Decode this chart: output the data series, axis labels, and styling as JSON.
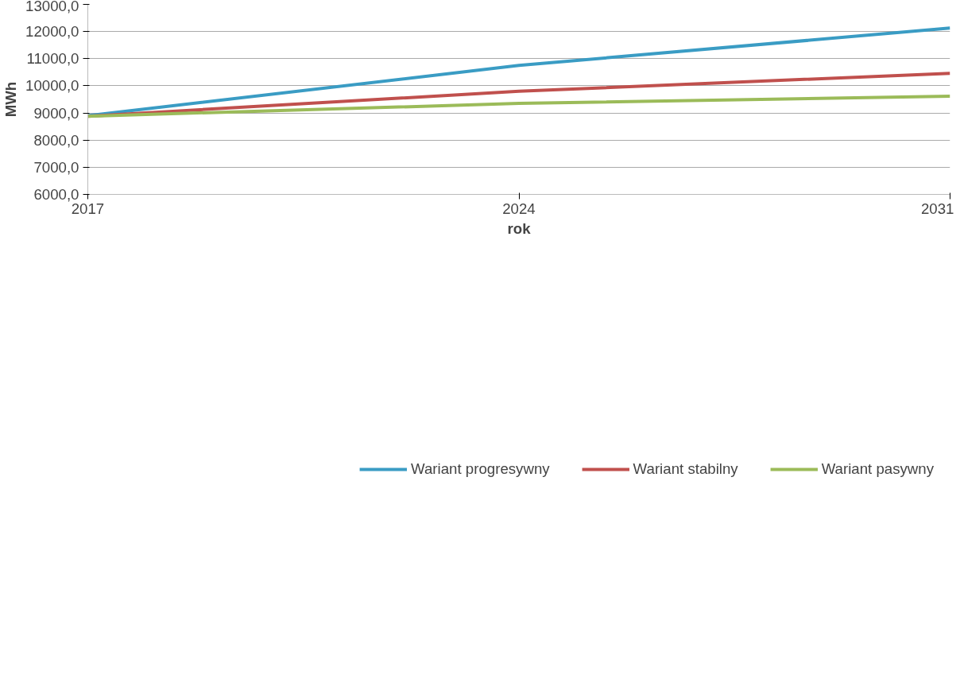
{
  "chart_data": {
    "type": "line",
    "xlabel": "rok",
    "ylabel": "MWh",
    "x": [
      2017,
      2024,
      2031
    ],
    "series": [
      {
        "name": "Wariant progresywny",
        "color": "#3a9cc4",
        "values": [
          8900,
          10750,
          12130
        ]
      },
      {
        "name": "Wariant stabilny",
        "color": "#c0504d",
        "values": [
          8880,
          9800,
          10460
        ]
      },
      {
        "name": "Wariant pasywny",
        "color": "#9bbb59",
        "values": [
          8880,
          9350,
          9620
        ]
      }
    ],
    "xlim": [
      2017,
      2031
    ],
    "xticks": [
      2017,
      2024,
      2031
    ],
    "ylim": [
      6000,
      13000
    ],
    "yticks": [
      {
        "value": 6000,
        "label": "6000,0"
      },
      {
        "value": 7000,
        "label": "7000,0"
      },
      {
        "value": 8000,
        "label": "8000,0"
      },
      {
        "value": 9000,
        "label": "9000,0"
      },
      {
        "value": 10000,
        "label": "10000,0"
      },
      {
        "value": 11000,
        "label": "11000,0"
      },
      {
        "value": 12000,
        "label": "12000,0"
      },
      {
        "value": 13000,
        "label": "13000,0"
      }
    ],
    "grid": "y",
    "legend": "bottom",
    "marker": "none",
    "line_style": "solid"
  }
}
